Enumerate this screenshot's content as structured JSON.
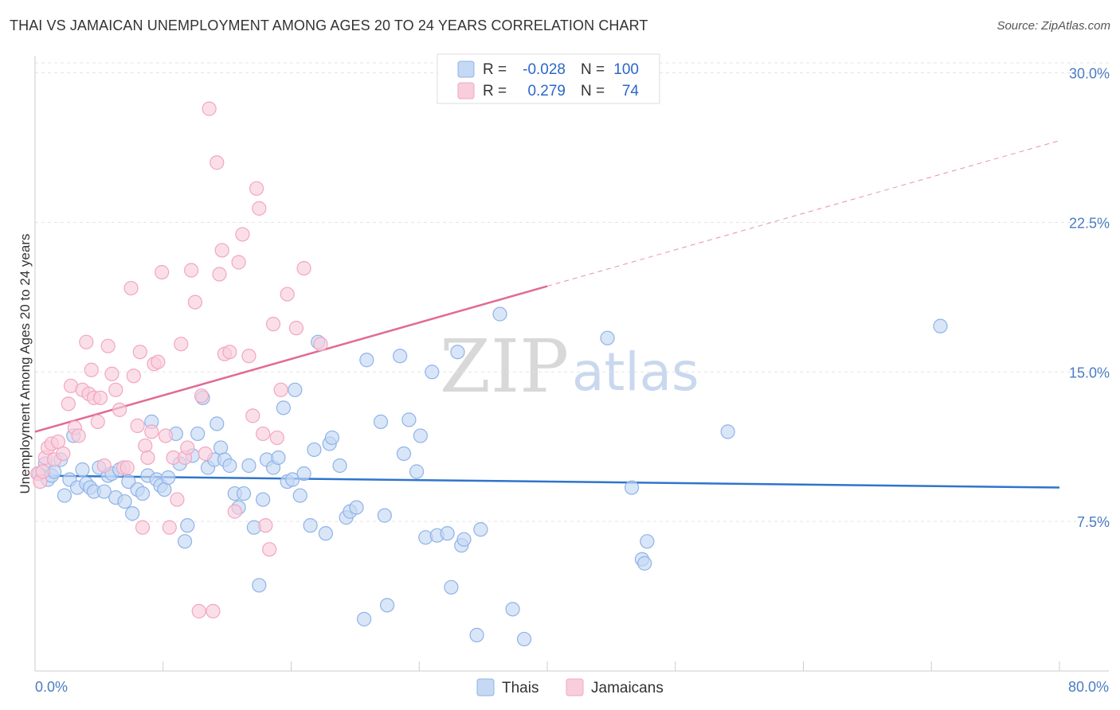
{
  "header": {
    "title": "THAI VS JAMAICAN UNEMPLOYMENT AMONG AGES 20 TO 24 YEARS CORRELATION CHART",
    "source": "Source: ZipAtlas.com"
  },
  "chart_data": {
    "type": "scatter",
    "title": "THAI VS JAMAICAN UNEMPLOYMENT AMONG AGES 20 TO 24 YEARS CORRELATION CHART",
    "xlabel": "",
    "ylabel": "Unemployment Among Ages 20 to 24 years",
    "xlim": [
      0,
      80
    ],
    "ylim": [
      0,
      30.5
    ],
    "x_tick_labels": [
      "0.0%",
      "80.0%"
    ],
    "y_ticks": [
      7.5,
      15.0,
      22.5,
      30.0
    ],
    "y_tick_labels": [
      "7.5%",
      "15.0%",
      "22.5%",
      "30.0%"
    ],
    "grid": true,
    "watermark": {
      "zip": "ZIP",
      "atlas": "atlas"
    },
    "legend": {
      "position": "top-center",
      "r_label": "R =",
      "n_label": "N =",
      "entries": [
        {
          "name": "Thais",
          "r": "-0.028",
          "n": "100"
        },
        {
          "name": "Jamaicans",
          "r": "0.279",
          "n": "74"
        }
      ]
    },
    "series": [
      {
        "name": "Thais",
        "color": "#8fb3e8",
        "fill": "#c5d8f4",
        "line_color": "#2f74cc",
        "trend": {
          "x": [
            0,
            80
          ],
          "y": [
            9.8,
            9.2
          ],
          "dashed_from": null
        },
        "points": [
          [
            0.3,
            9.9
          ],
          [
            0.8,
            10.4
          ],
          [
            1.0,
            9.6
          ],
          [
            1.3,
            9.8
          ],
          [
            1.5,
            10.0
          ],
          [
            2.0,
            10.6
          ],
          [
            2.3,
            8.8
          ],
          [
            2.7,
            9.6
          ],
          [
            3.0,
            11.8
          ],
          [
            3.3,
            9.2
          ],
          [
            3.7,
            10.1
          ],
          [
            4.0,
            9.4
          ],
          [
            4.3,
            9.2
          ],
          [
            4.6,
            9.0
          ],
          [
            5.0,
            10.2
          ],
          [
            5.4,
            9.0
          ],
          [
            5.7,
            9.8
          ],
          [
            6.0,
            9.9
          ],
          [
            6.3,
            8.7
          ],
          [
            6.6,
            10.1
          ],
          [
            7.0,
            8.5
          ],
          [
            7.3,
            9.5
          ],
          [
            7.6,
            7.9
          ],
          [
            8.0,
            9.1
          ],
          [
            8.4,
            8.9
          ],
          [
            8.8,
            9.8
          ],
          [
            9.1,
            12.5
          ],
          [
            9.5,
            9.6
          ],
          [
            9.8,
            9.3
          ],
          [
            10.1,
            9.1
          ],
          [
            10.4,
            9.7
          ],
          [
            11.0,
            11.9
          ],
          [
            11.3,
            10.4
          ],
          [
            11.7,
            6.5
          ],
          [
            11.9,
            7.3
          ],
          [
            12.3,
            10.8
          ],
          [
            12.7,
            11.9
          ],
          [
            13.1,
            13.7
          ],
          [
            13.5,
            10.2
          ],
          [
            14.0,
            10.6
          ],
          [
            14.2,
            12.4
          ],
          [
            14.5,
            11.2
          ],
          [
            14.8,
            10.6
          ],
          [
            15.2,
            10.3
          ],
          [
            15.6,
            8.9
          ],
          [
            15.9,
            8.2
          ],
          [
            16.3,
            8.9
          ],
          [
            16.7,
            10.3
          ],
          [
            17.1,
            7.2
          ],
          [
            17.5,
            4.3
          ],
          [
            17.8,
            8.6
          ],
          [
            18.1,
            10.6
          ],
          [
            18.6,
            10.2
          ],
          [
            19.0,
            10.7
          ],
          [
            19.4,
            13.2
          ],
          [
            19.7,
            9.5
          ],
          [
            20.1,
            9.6
          ],
          [
            20.3,
            14.1
          ],
          [
            20.7,
            8.8
          ],
          [
            21.0,
            9.9
          ],
          [
            21.5,
            7.3
          ],
          [
            21.8,
            11.1
          ],
          [
            22.1,
            16.5
          ],
          [
            22.7,
            6.9
          ],
          [
            23.0,
            11.4
          ],
          [
            23.2,
            11.7
          ],
          [
            23.8,
            10.3
          ],
          [
            24.3,
            7.7
          ],
          [
            24.6,
            8.0
          ],
          [
            25.1,
            8.2
          ],
          [
            25.7,
            2.6
          ],
          [
            25.9,
            15.6
          ],
          [
            27.0,
            12.5
          ],
          [
            27.3,
            7.8
          ],
          [
            27.5,
            3.3
          ],
          [
            28.5,
            15.8
          ],
          [
            28.8,
            10.9
          ],
          [
            29.2,
            12.6
          ],
          [
            29.8,
            10.0
          ],
          [
            30.1,
            11.8
          ],
          [
            30.5,
            6.7
          ],
          [
            31.0,
            15.0
          ],
          [
            31.4,
            6.8
          ],
          [
            32.2,
            6.9
          ],
          [
            32.5,
            4.2
          ],
          [
            33.0,
            16.0
          ],
          [
            33.3,
            6.3
          ],
          [
            33.5,
            6.6
          ],
          [
            34.5,
            1.8
          ],
          [
            34.8,
            7.1
          ],
          [
            36.3,
            17.9
          ],
          [
            37.3,
            3.1
          ],
          [
            38.2,
            1.6
          ],
          [
            44.7,
            16.7
          ],
          [
            46.6,
            9.2
          ],
          [
            47.4,
            5.6
          ],
          [
            47.6,
            5.4
          ],
          [
            47.8,
            6.5
          ],
          [
            54.1,
            12.0
          ],
          [
            70.7,
            17.3
          ]
        ]
      },
      {
        "name": "Jamaicans",
        "color": "#f2a6c0",
        "fill": "#f9cedc",
        "line_color": "#e06b95",
        "trend": {
          "x": [
            0,
            80
          ],
          "y": [
            12.0,
            26.6
          ],
          "dashed_from": 40
        },
        "points": [
          [
            0.2,
            9.9
          ],
          [
            0.4,
            9.5
          ],
          [
            0.6,
            10.0
          ],
          [
            0.8,
            10.7
          ],
          [
            1.0,
            11.2
          ],
          [
            1.3,
            11.4
          ],
          [
            1.5,
            10.6
          ],
          [
            1.8,
            11.5
          ],
          [
            2.2,
            10.9
          ],
          [
            2.6,
            13.4
          ],
          [
            2.8,
            14.3
          ],
          [
            3.1,
            12.2
          ],
          [
            3.4,
            11.8
          ],
          [
            3.7,
            14.1
          ],
          [
            4.0,
            16.5
          ],
          [
            4.2,
            13.9
          ],
          [
            4.4,
            15.1
          ],
          [
            4.6,
            13.7
          ],
          [
            4.9,
            12.5
          ],
          [
            5.1,
            13.7
          ],
          [
            5.4,
            10.3
          ],
          [
            5.7,
            16.3
          ],
          [
            6.0,
            14.9
          ],
          [
            6.3,
            14.1
          ],
          [
            6.6,
            13.1
          ],
          [
            6.9,
            10.2
          ],
          [
            7.2,
            10.2
          ],
          [
            7.5,
            19.2
          ],
          [
            7.7,
            14.8
          ],
          [
            8.0,
            12.3
          ],
          [
            8.2,
            16.0
          ],
          [
            8.4,
            7.2
          ],
          [
            8.6,
            11.3
          ],
          [
            8.8,
            10.7
          ],
          [
            9.1,
            12.0
          ],
          [
            9.3,
            15.4
          ],
          [
            9.6,
            15.5
          ],
          [
            9.9,
            20.0
          ],
          [
            10.2,
            11.8
          ],
          [
            10.5,
            7.2
          ],
          [
            10.8,
            10.7
          ],
          [
            11.1,
            8.6
          ],
          [
            11.4,
            16.4
          ],
          [
            11.7,
            10.7
          ],
          [
            11.9,
            11.2
          ],
          [
            12.2,
            20.1
          ],
          [
            12.5,
            18.5
          ],
          [
            12.8,
            3.0
          ],
          [
            13.0,
            13.8
          ],
          [
            13.3,
            10.9
          ],
          [
            13.6,
            28.2
          ],
          [
            13.9,
            3.0
          ],
          [
            14.2,
            25.5
          ],
          [
            14.4,
            19.9
          ],
          [
            14.6,
            21.1
          ],
          [
            14.8,
            15.9
          ],
          [
            15.2,
            16.0
          ],
          [
            15.6,
            8.0
          ],
          [
            15.9,
            20.5
          ],
          [
            16.2,
            21.9
          ],
          [
            16.7,
            15.8
          ],
          [
            17.0,
            12.8
          ],
          [
            17.3,
            24.2
          ],
          [
            17.5,
            23.2
          ],
          [
            17.8,
            11.9
          ],
          [
            18.0,
            7.3
          ],
          [
            18.3,
            6.1
          ],
          [
            18.6,
            17.4
          ],
          [
            18.9,
            11.7
          ],
          [
            19.2,
            14.1
          ],
          [
            19.7,
            18.9
          ],
          [
            20.4,
            17.2
          ],
          [
            21.0,
            20.2
          ],
          [
            22.3,
            16.4
          ]
        ]
      }
    ]
  }
}
